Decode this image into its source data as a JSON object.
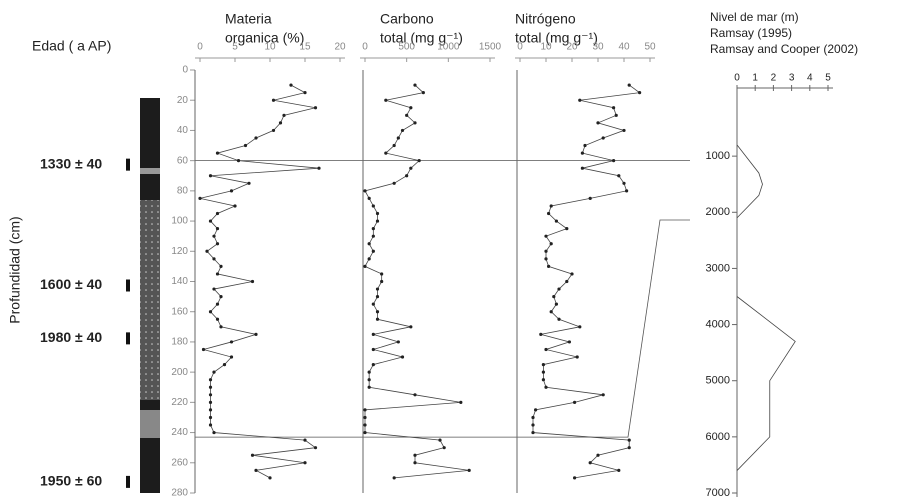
{
  "age_column": {
    "title": "Edad ( a AP)",
    "dates": [
      {
        "label": "1330 ± 40",
        "depth": 60
      },
      {
        "label": "1600 ± 40",
        "depth": 140
      },
      {
        "label": "1980 ± 40",
        "depth": 175
      },
      {
        "label": "1950 ± 60",
        "depth": 270
      }
    ]
  },
  "chart_data": [
    {
      "type": "line",
      "title": [
        "Materia",
        "organica (%)"
      ],
      "ylabel": "Profundidad (cm)",
      "color": "#444",
      "xlim": [
        0,
        20
      ],
      "xticks": [
        0,
        5,
        10,
        15,
        20
      ],
      "ylim": [
        0,
        280
      ],
      "yticks": [
        0,
        20,
        40,
        60,
        80,
        100,
        120,
        140,
        160,
        180,
        200,
        220,
        240,
        260,
        280
      ],
      "correlation_depths": [
        60,
        243
      ],
      "depth": [
        10,
        15,
        20,
        25,
        30,
        35,
        40,
        45,
        50,
        55,
        60,
        65,
        70,
        75,
        80,
        85,
        90,
        95,
        100,
        105,
        110,
        115,
        120,
        125,
        130,
        135,
        140,
        145,
        150,
        155,
        160,
        165,
        170,
        175,
        180,
        185,
        190,
        195,
        200,
        205,
        210,
        215,
        220,
        225,
        230,
        235,
        240,
        245,
        250,
        255,
        260,
        265,
        270
      ],
      "values": [
        13,
        15,
        10.5,
        16.5,
        12,
        11.5,
        10.5,
        8,
        6.5,
        2.5,
        5.5,
        17,
        1.5,
        7,
        4.5,
        0,
        5,
        2.5,
        1.5,
        2.5,
        2,
        2.5,
        1,
        2,
        3,
        2.5,
        7.5,
        2,
        3,
        2.5,
        1.5,
        2.5,
        3,
        8,
        4.5,
        0.5,
        4.5,
        3.5,
        2,
        1.5,
        1.5,
        1.5,
        1.5,
        1.5,
        1.5,
        1.5,
        2,
        15,
        16.5,
        7.5,
        15,
        8,
        10
      ]
    },
    {
      "type": "line",
      "title": [
        "Carbono",
        "total (mg g⁻¹)"
      ],
      "color": "#444",
      "xlim": [
        0,
        1500
      ],
      "xticks": [
        0,
        500,
        1000,
        1500
      ],
      "depth": [
        10,
        15,
        20,
        25,
        30,
        35,
        40,
        45,
        50,
        55,
        60,
        65,
        70,
        75,
        80,
        85,
        90,
        95,
        100,
        105,
        110,
        115,
        120,
        125,
        130,
        135,
        140,
        145,
        150,
        155,
        160,
        165,
        170,
        175,
        180,
        185,
        190,
        195,
        200,
        205,
        210,
        215,
        220,
        225,
        230,
        235,
        240,
        245,
        250,
        255,
        260,
        265,
        270
      ],
      "values": [
        600,
        700,
        250,
        550,
        500,
        600,
        450,
        400,
        350,
        250,
        650,
        550,
        500,
        350,
        0,
        50,
        100,
        150,
        150,
        100,
        100,
        50,
        100,
        50,
        0,
        200,
        200,
        150,
        150,
        100,
        150,
        150,
        550,
        100,
        400,
        100,
        450,
        100,
        50,
        50,
        50,
        600,
        1150,
        0,
        0,
        0,
        0,
        900,
        950,
        600,
        600,
        1250,
        350
      ]
    },
    {
      "type": "line",
      "title": [
        "Nitrógeno",
        "total (mg g⁻¹)"
      ],
      "color": "#444",
      "xlim": [
        0,
        50
      ],
      "xticks": [
        0,
        10,
        20,
        30,
        40,
        50
      ],
      "depth": [
        10,
        15,
        20,
        25,
        30,
        35,
        40,
        45,
        50,
        55,
        60,
        65,
        70,
        75,
        80,
        85,
        90,
        95,
        100,
        105,
        110,
        115,
        120,
        125,
        130,
        135,
        140,
        145,
        150,
        155,
        160,
        165,
        170,
        175,
        180,
        185,
        190,
        195,
        200,
        205,
        210,
        215,
        220,
        225,
        230,
        235,
        240,
        245,
        250,
        255,
        260,
        265,
        270
      ],
      "values": [
        42,
        46,
        23,
        36,
        37,
        30,
        40,
        32,
        25,
        24,
        36,
        24,
        38,
        40,
        41,
        27,
        12,
        11,
        14,
        18,
        10,
        12,
        10,
        10,
        11,
        20,
        18,
        15,
        13,
        14,
        12,
        15,
        23,
        8,
        19,
        10,
        22,
        9,
        9,
        9,
        10,
        32,
        21,
        6,
        5,
        5,
        5,
        42,
        42,
        30,
        27,
        38,
        21
      ]
    },
    {
      "type": "line",
      "title": [
        "Nivel de mar (m)",
        "Ramsay (1995)",
        "Ramsay and Cooper (2002)"
      ],
      "color": "#444",
      "xlim": [
        0,
        5
      ],
      "xticks": [
        0,
        1,
        2,
        3,
        4,
        5
      ],
      "ylim": [
        0,
        7000
      ],
      "yticks": [
        1000,
        2000,
        3000,
        4000,
        5000,
        6000,
        7000
      ],
      "series": [
        {
          "values": [
            0,
            1.2,
            1.4,
            1.2,
            0
          ],
          "age": [
            800,
            1300,
            1500,
            1700,
            2100
          ]
        },
        {
          "values": [
            0,
            3.2,
            1.8,
            1.8,
            0
          ],
          "age": [
            3500,
            4300,
            5000,
            6000,
            6600
          ]
        }
      ]
    }
  ]
}
